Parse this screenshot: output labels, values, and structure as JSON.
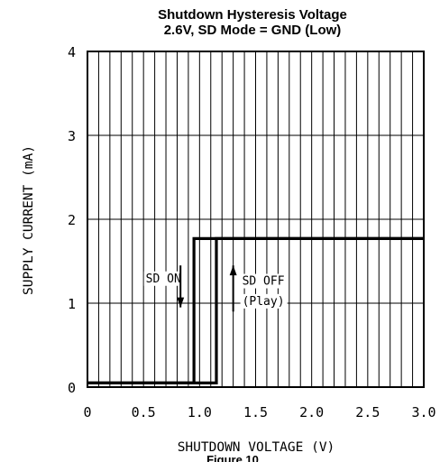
{
  "chart_data": {
    "type": "line",
    "title_line1": "Shutdown Hysteresis Voltage",
    "title_line2": "2.6V, SD Mode = GND (Low)",
    "xlabel": "SHUTDOWN VOLTAGE (V)",
    "ylabel": "SUPPLY CURRENT (mA)",
    "xlim": [
      0,
      3.0
    ],
    "ylim": [
      0,
      4
    ],
    "x_ticks": [
      0,
      0.5,
      1.0,
      1.5,
      2.0,
      2.5,
      3.0
    ],
    "x_tick_labels": [
      "0",
      "0.5",
      "1.0",
      "1.5",
      "2.0",
      "2.5",
      "3.0"
    ],
    "y_ticks": [
      0,
      1,
      2,
      3,
      4
    ],
    "y_tick_labels": [
      "0",
      "1",
      "2",
      "3",
      "4"
    ],
    "minor_x_step": 0.1,
    "grid": true,
    "series": [
      {
        "x": [
          0,
          0.95,
          0.95,
          3.0
        ],
        "y": [
          0.05,
          0.05,
          1.77,
          1.77
        ]
      },
      {
        "x": [
          0,
          1.15,
          1.15,
          3.0
        ],
        "y": [
          0.05,
          0.05,
          1.77,
          1.77
        ]
      }
    ],
    "annotations": [
      {
        "text": "SD ON",
        "x": 0.52,
        "y": 1.25,
        "arrow": "down",
        "arrow_x": 0.83,
        "arrow_from": 1.45,
        "arrow_to": 0.95
      },
      {
        "text": "SD OFF",
        "x": 1.38,
        "y": 1.22,
        "arrow": "up",
        "arrow_x": 1.3,
        "arrow_from": 0.9,
        "arrow_to": 1.45
      },
      {
        "text": "(Play)",
        "x": 1.38,
        "y": 0.98
      }
    ],
    "caption": "Figure 10"
  }
}
